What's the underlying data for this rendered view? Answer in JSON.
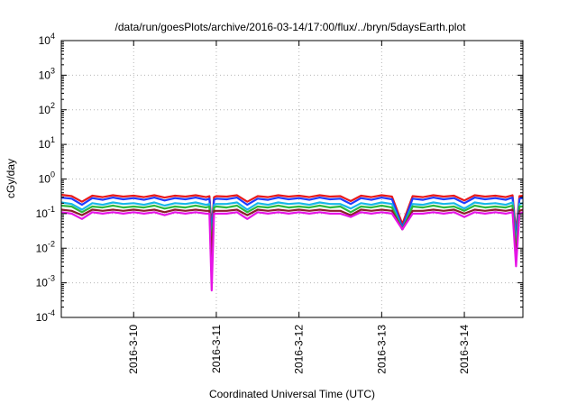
{
  "chart_data": {
    "type": "line",
    "title": "/data/run/goesPlots/archive/2016-03-14/17:00/flux/../bryn/5daysEarth.plot",
    "xlabel": "Coordinated Universal Time (UTC)",
    "ylabel": "cGy/day",
    "x_range": [
      "2016-03-09T03:00",
      "2016-03-14T17:00"
    ],
    "x_ticks": [
      "2016-3-10",
      "2016-3-11",
      "2016-3-12",
      "2016-3-13",
      "2016-3-14"
    ],
    "x_tick_dates": [
      "2016-03-10",
      "2016-03-11",
      "2016-03-12",
      "2016-03-13",
      "2016-03-14"
    ],
    "y_scale": "log",
    "ylim": [
      0.0001,
      10000
    ],
    "y_ticks": [
      {
        "value": 0.0001,
        "base": "10",
        "exp": "-4"
      },
      {
        "value": 0.001,
        "base": "10",
        "exp": "-3"
      },
      {
        "value": 0.01,
        "base": "10",
        "exp": "-2"
      },
      {
        "value": 0.1,
        "base": "10",
        "exp": "-1"
      },
      {
        "value": 1,
        "base": "10",
        "exp": "0"
      },
      {
        "value": 10,
        "base": "10",
        "exp": "1"
      },
      {
        "value": 100,
        "base": "10",
        "exp": "2"
      },
      {
        "value": 1000,
        "base": "10",
        "exp": "3"
      },
      {
        "value": 10000,
        "base": "10",
        "exp": "4"
      }
    ],
    "grid": true,
    "x": [
      "2016-03-09T03:00",
      "2016-03-09T06:00",
      "2016-03-09T09:00",
      "2016-03-09T12:00",
      "2016-03-09T15:00",
      "2016-03-09T18:00",
      "2016-03-09T21:00",
      "2016-03-10T00:00",
      "2016-03-10T03:00",
      "2016-03-10T06:00",
      "2016-03-10T09:00",
      "2016-03-10T12:00",
      "2016-03-10T15:00",
      "2016-03-10T18:00",
      "2016-03-10T21:00",
      "2016-03-10T22:00",
      "2016-03-10T22:40",
      "2016-03-10T23:20",
      "2016-03-11T00:00",
      "2016-03-11T03:00",
      "2016-03-11T06:00",
      "2016-03-11T09:00",
      "2016-03-11T12:00",
      "2016-03-11T15:00",
      "2016-03-11T18:00",
      "2016-03-11T21:00",
      "2016-03-12T00:00",
      "2016-03-12T03:00",
      "2016-03-12T06:00",
      "2016-03-12T09:00",
      "2016-03-12T12:00",
      "2016-03-12T15:00",
      "2016-03-12T18:00",
      "2016-03-12T21:00",
      "2016-03-13T00:00",
      "2016-03-13T03:00",
      "2016-03-13T06:00",
      "2016-03-13T09:00",
      "2016-03-13T12:00",
      "2016-03-13T15:00",
      "2016-03-13T18:00",
      "2016-03-13T21:00",
      "2016-03-14T00:00",
      "2016-03-14T03:00",
      "2016-03-14T06:00",
      "2016-03-14T09:00",
      "2016-03-14T12:00",
      "2016-03-14T14:00",
      "2016-03-14T15:00",
      "2016-03-14T16:00",
      "2016-03-14T17:00"
    ],
    "series": [
      {
        "color": "#e8191b",
        "values": [
          0.35,
          0.32,
          0.22,
          0.33,
          0.3,
          0.34,
          0.31,
          0.33,
          0.3,
          0.34,
          0.29,
          0.33,
          0.31,
          0.34,
          0.3,
          0.32,
          0.04,
          0.3,
          0.32,
          0.31,
          0.34,
          0.22,
          0.32,
          0.3,
          0.34,
          0.31,
          0.33,
          0.3,
          0.34,
          0.31,
          0.32,
          0.23,
          0.33,
          0.3,
          0.34,
          0.31,
          0.05,
          0.32,
          0.3,
          0.34,
          0.31,
          0.33,
          0.24,
          0.34,
          0.31,
          0.33,
          0.3,
          0.34,
          0.03,
          0.32,
          0.33
        ]
      },
      {
        "color": "#1f3cff",
        "values": [
          0.29,
          0.27,
          0.18,
          0.28,
          0.25,
          0.29,
          0.26,
          0.28,
          0.25,
          0.29,
          0.24,
          0.28,
          0.26,
          0.29,
          0.25,
          0.27,
          0.025,
          0.25,
          0.27,
          0.26,
          0.29,
          0.18,
          0.27,
          0.25,
          0.29,
          0.26,
          0.28,
          0.25,
          0.29,
          0.26,
          0.27,
          0.19,
          0.28,
          0.25,
          0.29,
          0.26,
          0.04,
          0.27,
          0.25,
          0.29,
          0.26,
          0.28,
          0.2,
          0.29,
          0.26,
          0.28,
          0.25,
          0.29,
          0.02,
          0.27,
          0.28
        ]
      },
      {
        "color": "#18b7e8",
        "values": [
          0.21,
          0.19,
          0.13,
          0.2,
          0.18,
          0.21,
          0.19,
          0.2,
          0.18,
          0.21,
          0.17,
          0.2,
          0.19,
          0.21,
          0.18,
          0.19,
          0.012,
          0.18,
          0.19,
          0.19,
          0.21,
          0.13,
          0.2,
          0.18,
          0.21,
          0.19,
          0.2,
          0.18,
          0.21,
          0.19,
          0.19,
          0.14,
          0.2,
          0.18,
          0.21,
          0.19,
          0.035,
          0.19,
          0.18,
          0.21,
          0.19,
          0.2,
          0.14,
          0.21,
          0.19,
          0.2,
          0.18,
          0.21,
          0.012,
          0.19,
          0.2
        ]
      },
      {
        "color": "#2db83d",
        "values": [
          0.17,
          0.16,
          0.11,
          0.16,
          0.15,
          0.17,
          0.15,
          0.16,
          0.15,
          0.17,
          0.14,
          0.16,
          0.15,
          0.17,
          0.15,
          0.16,
          0.008,
          0.15,
          0.16,
          0.15,
          0.17,
          0.11,
          0.16,
          0.15,
          0.17,
          0.15,
          0.16,
          0.15,
          0.17,
          0.15,
          0.16,
          0.11,
          0.16,
          0.15,
          0.17,
          0.15,
          0.035,
          0.16,
          0.15,
          0.17,
          0.15,
          0.16,
          0.12,
          0.17,
          0.15,
          0.16,
          0.15,
          0.17,
          0.008,
          0.16,
          0.16
        ]
      },
      {
        "color": "#8a1f2a",
        "values": [
          0.13,
          0.12,
          0.09,
          0.13,
          0.12,
          0.13,
          0.12,
          0.13,
          0.12,
          0.13,
          0.11,
          0.13,
          0.12,
          0.13,
          0.12,
          0.12,
          0.005,
          0.12,
          0.12,
          0.12,
          0.13,
          0.09,
          0.13,
          0.12,
          0.13,
          0.12,
          0.13,
          0.12,
          0.13,
          0.12,
          0.12,
          0.09,
          0.13,
          0.12,
          0.13,
          0.12,
          0.035,
          0.12,
          0.12,
          0.13,
          0.12,
          0.13,
          0.1,
          0.13,
          0.12,
          0.13,
          0.12,
          0.13,
          0.005,
          0.12,
          0.13
        ]
      },
      {
        "color": "#e614e6",
        "values": [
          0.11,
          0.1,
          0.07,
          0.11,
          0.1,
          0.11,
          0.1,
          0.11,
          0.1,
          0.11,
          0.09,
          0.11,
          0.1,
          0.11,
          0.1,
          0.1,
          0.0006,
          0.1,
          0.1,
          0.1,
          0.11,
          0.07,
          0.11,
          0.1,
          0.11,
          0.1,
          0.11,
          0.1,
          0.11,
          0.1,
          0.1,
          0.08,
          0.11,
          0.1,
          0.11,
          0.1,
          0.035,
          0.1,
          0.1,
          0.11,
          0.1,
          0.11,
          0.08,
          0.11,
          0.1,
          0.11,
          0.1,
          0.11,
          0.003,
          0.1,
          0.11
        ]
      }
    ]
  }
}
